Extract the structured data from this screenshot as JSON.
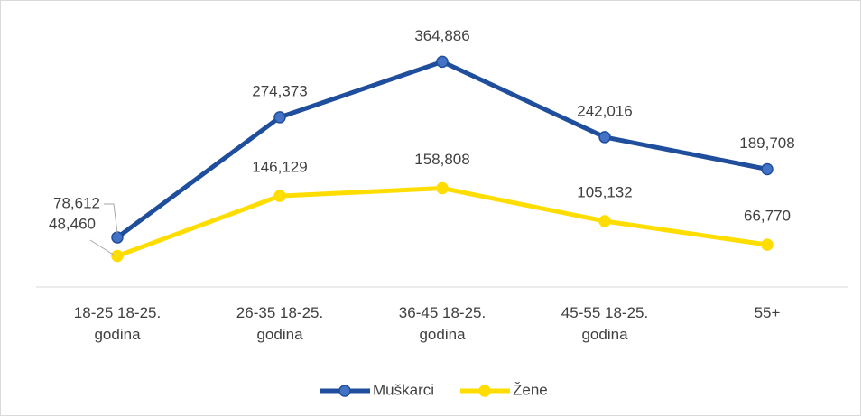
{
  "chart_data": {
    "type": "line",
    "categories": [
      "18-25 18-25. godina",
      "26-35 18-25. godina",
      "36-45 18-25. godina",
      "45-55 18-25. godina",
      "55+"
    ],
    "series": [
      {
        "name": "Muškarci",
        "color": "#1f4e9c",
        "values": [
          78612,
          274373,
          364886,
          242016,
          189708
        ],
        "value_labels": [
          "78,612",
          "274,373",
          "364,886",
          "242,016",
          "189,708"
        ]
      },
      {
        "name": "Žene",
        "color": "#ffdd00",
        "values": [
          48460,
          146129,
          158808,
          105132,
          66770
        ],
        "value_labels": [
          "48,460",
          "146,129",
          "158,808",
          "105,132",
          "66,770"
        ]
      }
    ],
    "ylim": [
      0,
      400000
    ],
    "legend": "bottom"
  }
}
